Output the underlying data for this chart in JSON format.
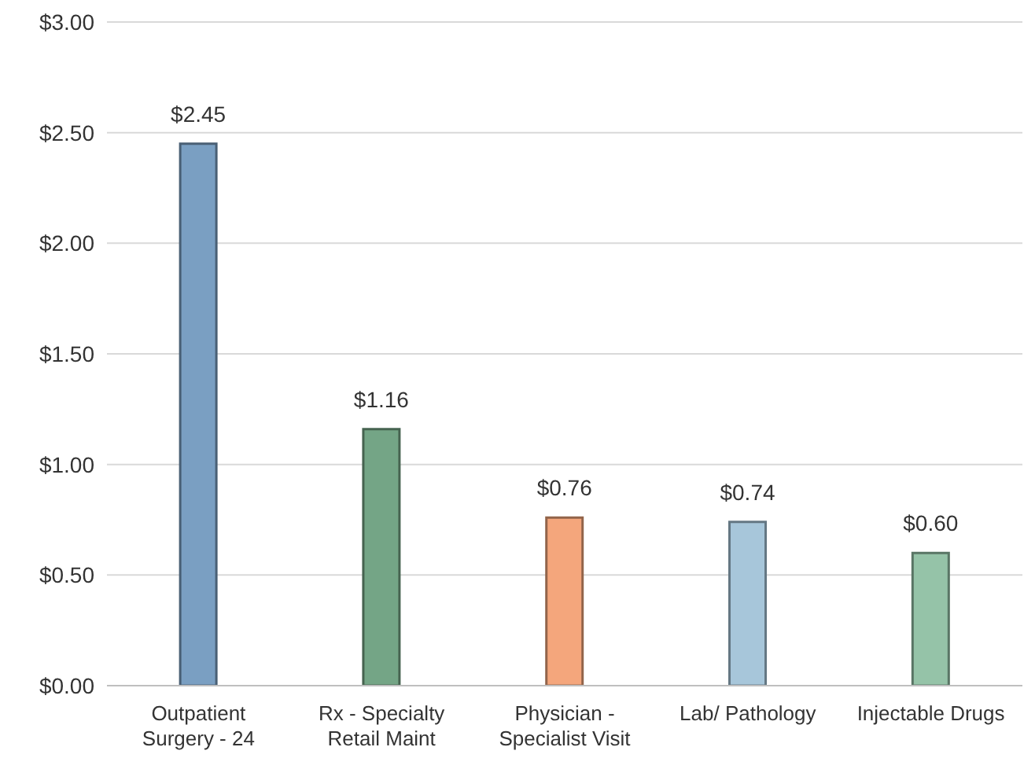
{
  "chart_data": {
    "type": "bar",
    "categories": [
      "Outpatient Surgery - 24",
      "Rx - Specialty Retail Maint",
      "Physician - Specialist Visit",
      "Lab/ Pathology",
      "Injectable Drugs"
    ],
    "values": [
      2.45,
      1.16,
      0.76,
      0.74,
      0.6
    ],
    "value_labels": [
      "$2.45",
      "$1.16",
      "$0.76",
      "$0.74",
      "$0.60"
    ],
    "colors": [
      "#7a9fc2",
      "#74a586",
      "#f4a67c",
      "#a7c6da",
      "#95c3a8"
    ],
    "ylim": [
      0,
      3
    ],
    "yticks": [
      {
        "value": 0,
        "label": "$0.00"
      },
      {
        "value": 0.5,
        "label": "$0.50"
      },
      {
        "value": 1,
        "label": "$1.00"
      },
      {
        "value": 1.5,
        "label": "$1.50"
      },
      {
        "value": 2,
        "label": "$2.00"
      },
      {
        "value": 2.5,
        "label": "$2.50"
      },
      {
        "value": 3,
        "label": "$3.00"
      }
    ],
    "grid": "y"
  }
}
